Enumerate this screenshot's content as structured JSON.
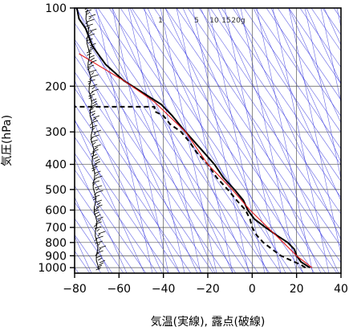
{
  "chart_data": {
    "type": "line",
    "title": "",
    "xlabel": "気温(実線), 露点(破線)",
    "ylabel": "気圧(hPa)",
    "xlim": [
      -80,
      40
    ],
    "ylim": [
      1050,
      100
    ],
    "y_scale": "log",
    "x_ticks": [
      "−80",
      "−60",
      "−40",
      "−20",
      "0",
      "20",
      "40"
    ],
    "x_tick_values": [
      -80,
      -60,
      -40,
      -20,
      0,
      20,
      40
    ],
    "y_ticks": [
      "100",
      "200",
      "300",
      "400",
      "500",
      "600",
      "700",
      "800",
      "900",
      "1000"
    ],
    "y_tick_values": [
      100,
      200,
      300,
      400,
      500,
      600,
      700,
      800,
      900,
      1000
    ],
    "mixing_ratio_labels": [
      "1",
      "5",
      "10",
      "15",
      "20g"
    ],
    "grid": true,
    "series": [
      {
        "role": "temperature",
        "style": "solid",
        "color": "#000000",
        "points": [
          [
            26,
            1000
          ],
          [
            24,
            975
          ],
          [
            22,
            950
          ],
          [
            20,
            900
          ],
          [
            19,
            850
          ],
          [
            16,
            800
          ],
          [
            11,
            750
          ],
          [
            6,
            700
          ],
          [
            1,
            650
          ],
          [
            -2,
            600
          ],
          [
            -4,
            550
          ],
          [
            -8,
            500
          ],
          [
            -13,
            450
          ],
          [
            -17,
            400
          ],
          [
            -23,
            350
          ],
          [
            -30,
            300
          ],
          [
            -36,
            260
          ],
          [
            -41,
            235
          ],
          [
            -50,
            210
          ],
          [
            -58,
            190
          ],
          [
            -66,
            165
          ],
          [
            -72,
            140
          ],
          [
            -75,
            120
          ],
          [
            -78,
            110
          ],
          [
            -79,
            100
          ]
        ]
      },
      {
        "role": "dewpoint",
        "style": "dashed",
        "color": "#000000",
        "points": [
          [
            24,
            1000
          ],
          [
            22,
            975
          ],
          [
            19,
            950
          ],
          [
            13,
            900
          ],
          [
            9,
            850
          ],
          [
            5,
            800
          ],
          [
            2,
            750
          ],
          [
            0,
            700
          ],
          [
            -1,
            650
          ],
          [
            -3,
            600
          ],
          [
            -7,
            550
          ],
          [
            -11,
            500
          ],
          [
            -16,
            450
          ],
          [
            -20,
            400
          ],
          [
            -25,
            360
          ],
          [
            -28,
            330
          ],
          [
            -32,
            300
          ],
          [
            -37,
            280
          ],
          [
            -40,
            260
          ],
          [
            -44,
            250
          ],
          [
            -44,
            240
          ],
          [
            -80,
            240
          ]
        ]
      },
      {
        "role": "reference",
        "style": "solid",
        "color": "#e41a1c",
        "points": [
          [
            27,
            1000
          ],
          [
            20,
            900
          ],
          [
            14,
            800
          ],
          [
            7,
            700
          ],
          [
            -1,
            600
          ],
          [
            -9,
            500
          ],
          [
            -20,
            400
          ],
          [
            -30,
            300
          ],
          [
            -44,
            230
          ],
          [
            -58,
            190
          ],
          [
            -78,
            150
          ]
        ]
      }
    ],
    "background_lines": {
      "color": "#3a3adf",
      "types": [
        "dry adiabats",
        "moist adiabats",
        "saturation mixing ratio lines"
      ]
    },
    "wind_barbs": {
      "position": "left edge",
      "color": "#000000"
    }
  }
}
